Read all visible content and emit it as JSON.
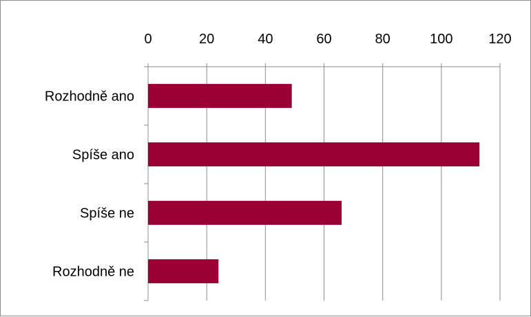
{
  "chart_data": {
    "type": "bar",
    "orientation": "horizontal",
    "categories": [
      "Rozhodně ano",
      "Spíše ano",
      "Spíše ne",
      "Rozhodně ne"
    ],
    "values": [
      49,
      113,
      66,
      24
    ],
    "xlim": [
      0,
      120
    ],
    "xticks": [
      0,
      20,
      40,
      60,
      80,
      100,
      120
    ],
    "x_axis_position": "top",
    "grid": "vertical",
    "bar_color": "#990033",
    "title": "",
    "xlabel": "",
    "ylabel": ""
  }
}
